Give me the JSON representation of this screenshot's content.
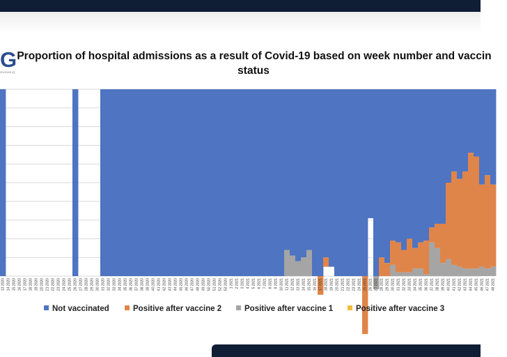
{
  "logo": {
    "letter": "G",
    "subtitle": "OHSHEIQ"
  },
  "title_line1": "Proportion of hospital admissions as a result of Covid-19 based on week number and vaccin",
  "title_line2": "status",
  "colors": {
    "not_vaccinated": "#4e74c2",
    "vaccine_2": "#e0854a",
    "vaccine_1": "#a5a5a5",
    "vaccine_3": "#f2bd3c",
    "top_bar": "#0f1e35"
  },
  "chart_data": {
    "type": "bar",
    "stacked": true,
    "normalized": true,
    "grid": true,
    "xlabel": "",
    "ylabel": "",
    "ylim": [
      0,
      1
    ],
    "categories": [
      "13 2020",
      "14 2020",
      "15 2020",
      "16 2020",
      "17 2020",
      "18 2020",
      "19 2020",
      "20 2020",
      "21 2020",
      "22 2020",
      "23 2020",
      "24 2020",
      "25 2020",
      "26 2020",
      "27 2020",
      "28 2020",
      "29 2020",
      "30 2020",
      "31 2020",
      "32 2020",
      "33 2020",
      "34 2020",
      "35 2020",
      "36 2020",
      "37 2020",
      "38 2020",
      "39 2020",
      "40 2020",
      "41 2020",
      "42 2020",
      "43 2020",
      "44 2020",
      "45 2020",
      "46 2020",
      "47 2020",
      "48 2020",
      "49 2020",
      "50 2020",
      "51 2020",
      "52 2020",
      "53 2020",
      "1 2021",
      "2 2021",
      "3 2021",
      "4 2021",
      "5 2021",
      "6 2021",
      "7 2021",
      "8 2021",
      "9 2021",
      "10 2021",
      "11 2021",
      "12 2021",
      "13 2021",
      "14 2021",
      "15 2021",
      "16 2021",
      "17 2021",
      "18 2021",
      "19 2021",
      "20 2021",
      "21 2021",
      "22 2021",
      "23 2021",
      "24 2021",
      "25 2021",
      "26 2021",
      "27 2021",
      "28 2021",
      "29 2021",
      "30 2021",
      "31 2021",
      "32 2021",
      "33 2021",
      "34 2021",
      "35 2021",
      "36 2021",
      "37 2021",
      "38 2021",
      "39 2021",
      "40 2021",
      "41 2021",
      "42 2021",
      "43 2021",
      "44 2021",
      "45 2021",
      "46 2021",
      "47 2021",
      "48 2021"
    ],
    "series": [
      {
        "name": "Not vaccinated",
        "values": [
          1,
          0,
          0,
          0,
          0,
          0,
          0,
          0,
          0,
          0,
          0,
          0,
          0,
          1,
          0,
          0,
          0,
          0,
          1,
          1,
          1,
          1,
          1,
          1,
          1,
          1,
          1,
          1,
          1,
          1,
          1,
          1,
          1,
          1,
          1,
          1,
          1,
          1,
          1,
          1,
          1,
          1,
          1,
          1,
          1,
          1,
          1,
          1,
          1,
          1,
          1,
          0.86,
          0.89,
          0.92,
          0.9,
          0.86,
          1,
          1,
          0.9,
          0.95,
          1,
          1,
          1,
          1,
          1,
          1,
          0.69,
          1,
          0.9,
          0.93,
          0.81,
          0.82,
          0.86,
          0.8,
          0.85,
          0.82,
          0.81,
          0.74,
          0.72,
          0.72,
          0.5,
          0.44,
          0.48,
          0.44,
          0.34,
          0.36,
          0.51,
          0.46,
          0.51
        ]
      },
      {
        "name": "Positive after vaccine 2",
        "values": [
          0,
          0,
          0,
          0,
          0,
          0,
          0,
          0,
          0,
          0,
          0,
          0,
          0,
          0,
          0,
          0,
          0,
          0,
          0,
          0,
          0,
          0,
          0,
          0,
          0,
          0,
          0,
          0,
          0,
          0,
          0,
          0,
          0,
          0,
          0,
          0,
          0,
          0,
          0,
          0,
          0,
          0,
          0,
          0,
          0,
          0,
          0,
          0,
          0,
          0,
          0,
          0,
          0,
          0,
          0,
          0,
          0,
          0.1,
          0.05,
          0,
          0,
          0,
          0,
          0,
          0,
          0.31,
          0,
          0,
          0.1,
          0.07,
          0.13,
          0.16,
          0.12,
          0.18,
          0.11,
          0.14,
          0.18,
          0.08,
          0.13,
          0.21,
          0.41,
          0.5,
          0.47,
          0.52,
          0.62,
          0.6,
          0.44,
          0.5,
          0.44
        ]
      },
      {
        "name": "Positive after vaccine 1",
        "values": [
          0,
          0,
          0,
          0,
          0,
          0,
          0,
          0,
          0,
          0,
          0,
          0,
          0,
          0,
          0,
          0,
          0,
          0,
          0,
          0,
          0,
          0,
          0,
          0,
          0,
          0,
          0,
          0,
          0,
          0,
          0,
          0,
          0,
          0,
          0,
          0,
          0,
          0,
          0,
          0,
          0,
          0,
          0,
          0,
          0,
          0,
          0,
          0,
          0,
          0,
          0,
          0.14,
          0.11,
          0.08,
          0.1,
          0.14,
          0,
          0,
          0,
          0,
          0,
          0,
          0,
          0,
          0,
          0,
          0,
          0.07,
          0,
          0,
          0.06,
          0.02,
          0.02,
          0.02,
          0.04,
          0.04,
          0.01,
          0.18,
          0.15,
          0.07,
          0.09,
          0.06,
          0.05,
          0.04,
          0.04,
          0.04,
          0.05,
          0.04,
          0.05
        ]
      },
      {
        "name": "Positive after vaccine 3",
        "values": [
          0,
          0,
          0,
          0,
          0,
          0,
          0,
          0,
          0,
          0,
          0,
          0,
          0,
          0,
          0,
          0,
          0,
          0,
          0,
          0,
          0,
          0,
          0,
          0,
          0,
          0,
          0,
          0,
          0,
          0,
          0,
          0,
          0,
          0,
          0,
          0,
          0,
          0,
          0,
          0,
          0,
          0,
          0,
          0,
          0,
          0,
          0,
          0,
          0,
          0,
          0,
          0,
          0,
          0,
          0,
          0,
          0,
          0,
          0,
          0,
          0,
          0,
          0,
          0,
          0,
          0,
          0,
          0,
          0,
          0,
          0,
          0,
          0,
          0,
          0,
          0,
          0,
          0,
          0,
          0,
          0,
          0,
          0,
          0,
          0,
          0,
          0,
          0,
          0
        ]
      }
    ]
  }
}
